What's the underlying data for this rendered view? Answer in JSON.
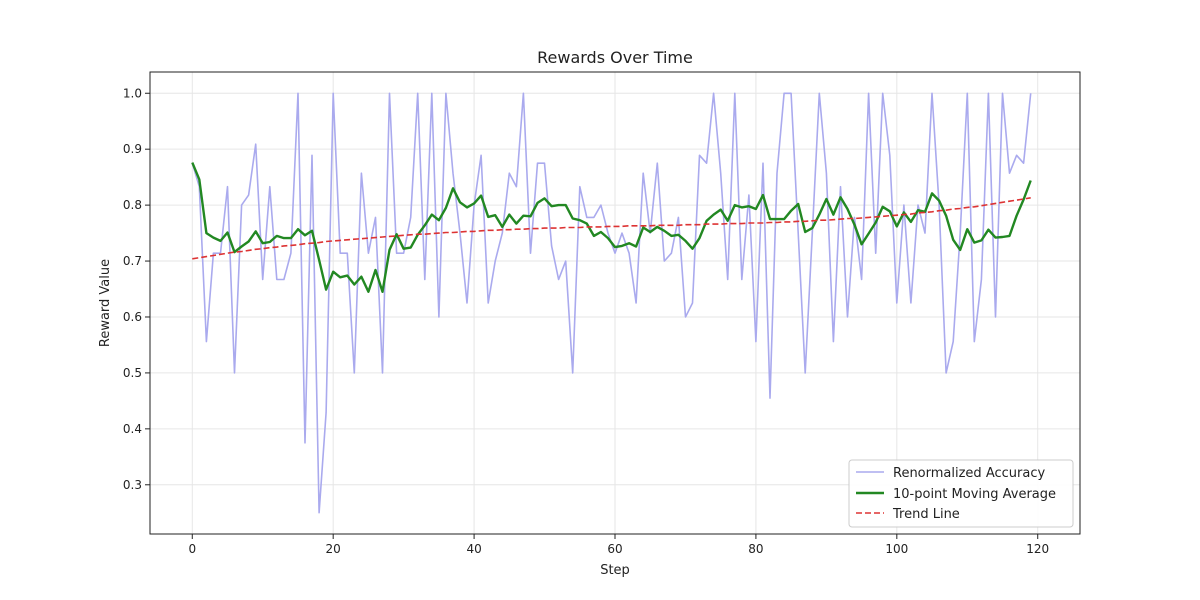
{
  "chart_data": {
    "type": "line",
    "title": "Rewards Over Time",
    "xlabel": "Step",
    "ylabel": "Reward Value",
    "xlim": [
      -6,
      126
    ],
    "ylim": [
      0.212,
      1.038
    ],
    "xticks": [
      0,
      20,
      40,
      60,
      80,
      100,
      120
    ],
    "yticks": [
      0.3,
      0.4,
      0.5,
      0.6,
      0.7,
      0.8,
      0.9,
      1.0
    ],
    "xtick_labels": [
      "0",
      "20",
      "40",
      "60",
      "80",
      "100",
      "120"
    ],
    "ytick_labels": [
      "0.3",
      "0.4",
      "0.5",
      "0.6",
      "0.7",
      "0.8",
      "0.9",
      "1.0"
    ],
    "grid": true,
    "legend_position": "bottom-right",
    "series": [
      {
        "name": "Renormalized Accuracy",
        "color": "#aaaaee",
        "style": "solid",
        "values": [
          0.875,
          0.833,
          0.556,
          0.714,
          0.714,
          0.833,
          0.5,
          0.8,
          0.818,
          0.909,
          0.667,
          0.833,
          0.667,
          0.667,
          0.714,
          1.0,
          0.375,
          0.889,
          0.25,
          0.429,
          1.0,
          0.714,
          0.714,
          0.5,
          0.857,
          0.714,
          0.778,
          0.5,
          1.0,
          0.714,
          0.714,
          0.778,
          1.0,
          0.667,
          1.0,
          0.6,
          1.0,
          0.857,
          0.75,
          0.625,
          0.8,
          0.889,
          0.625,
          0.7,
          0.75,
          0.857,
          0.833,
          1.0,
          0.714,
          0.875,
          0.875,
          0.727,
          0.667,
          0.7,
          0.5,
          0.833,
          0.778,
          0.778,
          0.8,
          0.75,
          0.714,
          0.75,
          0.714,
          0.625,
          0.857,
          0.75,
          0.875,
          0.7,
          0.714,
          0.778,
          0.6,
          0.625,
          0.889,
          0.875,
          1.0,
          0.857,
          0.667,
          1.0,
          0.667,
          0.818,
          0.556,
          0.875,
          0.455,
          0.857,
          1.0,
          1.0,
          0.75,
          0.5,
          0.75,
          1.0,
          0.857,
          0.556,
          0.833,
          0.6,
          0.778,
          0.667,
          1.0,
          0.714,
          1.0,
          0.889,
          0.625,
          0.8,
          0.625,
          0.8,
          0.75,
          1.0,
          0.8,
          0.5,
          0.556,
          0.75,
          1.0,
          0.556,
          0.667,
          1.0,
          0.6,
          1.0,
          0.857,
          0.889,
          0.875,
          1.0
        ]
      },
      {
        "name": "10-point Moving Average",
        "color": "#228822",
        "style": "solid",
        "values": [
          0.876,
          0.846,
          0.75,
          0.742,
          0.736,
          0.751,
          0.716,
          0.726,
          0.735,
          0.753,
          0.732,
          0.734,
          0.745,
          0.741,
          0.741,
          0.757,
          0.746,
          0.754,
          0.702,
          0.649,
          0.681,
          0.671,
          0.674,
          0.658,
          0.672,
          0.645,
          0.684,
          0.645,
          0.72,
          0.748,
          0.722,
          0.724,
          0.747,
          0.764,
          0.783,
          0.773,
          0.795,
          0.83,
          0.805,
          0.796,
          0.803,
          0.817,
          0.779,
          0.782,
          0.761,
          0.783,
          0.767,
          0.781,
          0.78,
          0.804,
          0.812,
          0.798,
          0.8,
          0.8,
          0.776,
          0.773,
          0.767,
          0.745,
          0.752,
          0.741,
          0.725,
          0.727,
          0.732,
          0.726,
          0.76,
          0.752,
          0.761,
          0.754,
          0.745,
          0.747,
          0.736,
          0.722,
          0.741,
          0.772,
          0.783,
          0.792,
          0.772,
          0.8,
          0.796,
          0.798,
          0.793,
          0.818,
          0.775,
          0.775,
          0.775,
          0.79,
          0.802,
          0.752,
          0.759,
          0.783,
          0.811,
          0.783,
          0.814,
          0.793,
          0.765,
          0.73,
          0.749,
          0.769,
          0.797,
          0.789,
          0.762,
          0.787,
          0.77,
          0.791,
          0.788,
          0.821,
          0.808,
          0.781,
          0.738,
          0.72,
          0.757,
          0.733,
          0.737,
          0.756,
          0.742,
          0.743,
          0.745,
          0.781,
          0.81,
          0.844
        ]
      },
      {
        "name": "Trend Line",
        "color": "#dd3333",
        "style": "dashed",
        "values": [
          0.704,
          0.706,
          0.708,
          0.71,
          0.712,
          0.714,
          0.716,
          0.717,
          0.719,
          0.721,
          0.722,
          0.724,
          0.725,
          0.727,
          0.728,
          0.729,
          0.731,
          0.732,
          0.733,
          0.735,
          0.736,
          0.737,
          0.738,
          0.739,
          0.74,
          0.741,
          0.742,
          0.743,
          0.744,
          0.745,
          0.746,
          0.747,
          0.748,
          0.748,
          0.749,
          0.75,
          0.751,
          0.751,
          0.752,
          0.753,
          0.753,
          0.754,
          0.755,
          0.755,
          0.756,
          0.756,
          0.757,
          0.757,
          0.758,
          0.758,
          0.759,
          0.759,
          0.759,
          0.76,
          0.76,
          0.76,
          0.761,
          0.761,
          0.761,
          0.762,
          0.762,
          0.762,
          0.763,
          0.763,
          0.763,
          0.763,
          0.764,
          0.764,
          0.764,
          0.764,
          0.765,
          0.765,
          0.765,
          0.766,
          0.766,
          0.766,
          0.767,
          0.767,
          0.767,
          0.768,
          0.768,
          0.768,
          0.769,
          0.769,
          0.77,
          0.77,
          0.771,
          0.771,
          0.772,
          0.773,
          0.773,
          0.774,
          0.775,
          0.776,
          0.776,
          0.777,
          0.778,
          0.779,
          0.78,
          0.781,
          0.782,
          0.783,
          0.784,
          0.786,
          0.787,
          0.788,
          0.79,
          0.791,
          0.793,
          0.794,
          0.796,
          0.797,
          0.799,
          0.801,
          0.803,
          0.805,
          0.807,
          0.809,
          0.811,
          0.813
        ]
      }
    ]
  }
}
